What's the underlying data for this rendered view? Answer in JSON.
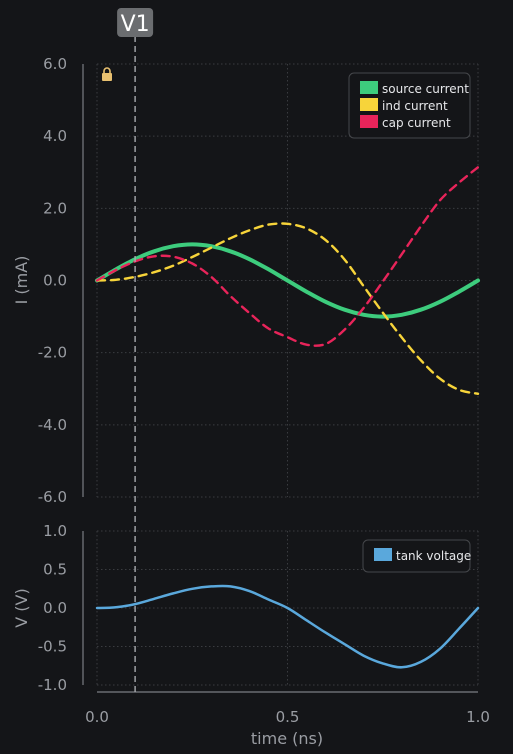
{
  "colors": {
    "background": "#141518",
    "grid": "#3a3c40",
    "axis": "#7a7d83",
    "tick_text": "#9a9da3",
    "cursor": "#a8aaae",
    "cursor_label_bg": "#6b6d70"
  },
  "cursor": {
    "label": "V1",
    "x": 0.1,
    "icon": "lock-icon"
  },
  "chart_data": [
    {
      "type": "line",
      "title": "",
      "xlabel": "",
      "ylabel": "I (mA)",
      "xlim": [
        0,
        1
      ],
      "ylim": [
        -6,
        6
      ],
      "yticks": [
        6,
        4,
        2,
        0,
        -2,
        -4,
        -6
      ],
      "ytick_labels": [
        "6.0",
        "4.0",
        "2.0",
        "0.0",
        "-2.0",
        "-4.0",
        "-6.0"
      ],
      "grid": true,
      "legend": "top-right",
      "series": [
        {
          "name": "source current",
          "color": "#3dcc7d",
          "style": "solid",
          "x": [
            0,
            0.05,
            0.1,
            0.15,
            0.2,
            0.25,
            0.3,
            0.35,
            0.4,
            0.45,
            0.5,
            0.55,
            0.6,
            0.65,
            0.7,
            0.75,
            0.8,
            0.85,
            0.9,
            0.95,
            1.0
          ],
          "y": [
            0,
            0.31,
            0.59,
            0.81,
            0.95,
            1.0,
            0.95,
            0.81,
            0.59,
            0.31,
            0,
            -0.31,
            -0.59,
            -0.81,
            -0.95,
            -1.0,
            -0.95,
            -0.81,
            -0.59,
            -0.31,
            0
          ]
        },
        {
          "name": "ind current",
          "color": "#f7d43a",
          "style": "dashed",
          "x": [
            0,
            0.05,
            0.1,
            0.15,
            0.2,
            0.25,
            0.3,
            0.35,
            0.4,
            0.45,
            0.5,
            0.55,
            0.6,
            0.65,
            0.7,
            0.75,
            0.8,
            0.85,
            0.9,
            0.95,
            1.0
          ],
          "y": [
            0,
            0.02,
            0.1,
            0.23,
            0.41,
            0.65,
            0.91,
            1.17,
            1.39,
            1.55,
            1.57,
            1.44,
            1.12,
            0.58,
            -0.16,
            -0.89,
            -1.58,
            -2.21,
            -2.72,
            -3.03,
            -3.14
          ]
        },
        {
          "name": "cap current",
          "color": "#e8245a",
          "style": "dashed",
          "x": [
            0,
            0.05,
            0.1,
            0.15,
            0.2,
            0.25,
            0.3,
            0.35,
            0.4,
            0.45,
            0.5,
            0.55,
            0.6,
            0.65,
            0.7,
            0.75,
            0.8,
            0.85,
            0.9,
            0.95,
            1.0
          ],
          "y": [
            0,
            0.29,
            0.53,
            0.67,
            0.66,
            0.47,
            0.1,
            -0.43,
            -0.9,
            -1.33,
            -1.57,
            -1.78,
            -1.76,
            -1.36,
            -0.76,
            -0.03,
            0.73,
            1.5,
            2.22,
            2.71,
            3.14
          ]
        }
      ]
    },
    {
      "type": "line",
      "title": "",
      "xlabel": "time (ns)",
      "ylabel": "V (V)",
      "xlim": [
        0,
        1
      ],
      "ylim": [
        -1,
        1
      ],
      "xticks": [
        0,
        0.5,
        1
      ],
      "xtick_labels": [
        "0.0",
        "0.5",
        "1.0"
      ],
      "yticks": [
        1,
        0.5,
        0,
        -0.5,
        -1
      ],
      "ytick_labels": [
        "1.0",
        "0.5",
        "0.0",
        "-0.5",
        "-1.0"
      ],
      "grid": true,
      "legend": "top-right",
      "series": [
        {
          "name": "tank voltage",
          "color": "#5aa8dc",
          "style": "solid",
          "x": [
            0,
            0.05,
            0.1,
            0.15,
            0.2,
            0.25,
            0.3,
            0.35,
            0.4,
            0.45,
            0.5,
            0.55,
            0.6,
            0.65,
            0.7,
            0.75,
            0.8,
            0.85,
            0.9,
            0.95,
            1.0
          ],
          "y": [
            0,
            0.01,
            0.05,
            0.12,
            0.19,
            0.25,
            0.28,
            0.28,
            0.22,
            0.11,
            0,
            -0.16,
            -0.32,
            -0.47,
            -0.62,
            -0.72,
            -0.77,
            -0.7,
            -0.53,
            -0.27,
            0
          ]
        }
      ]
    }
  ]
}
